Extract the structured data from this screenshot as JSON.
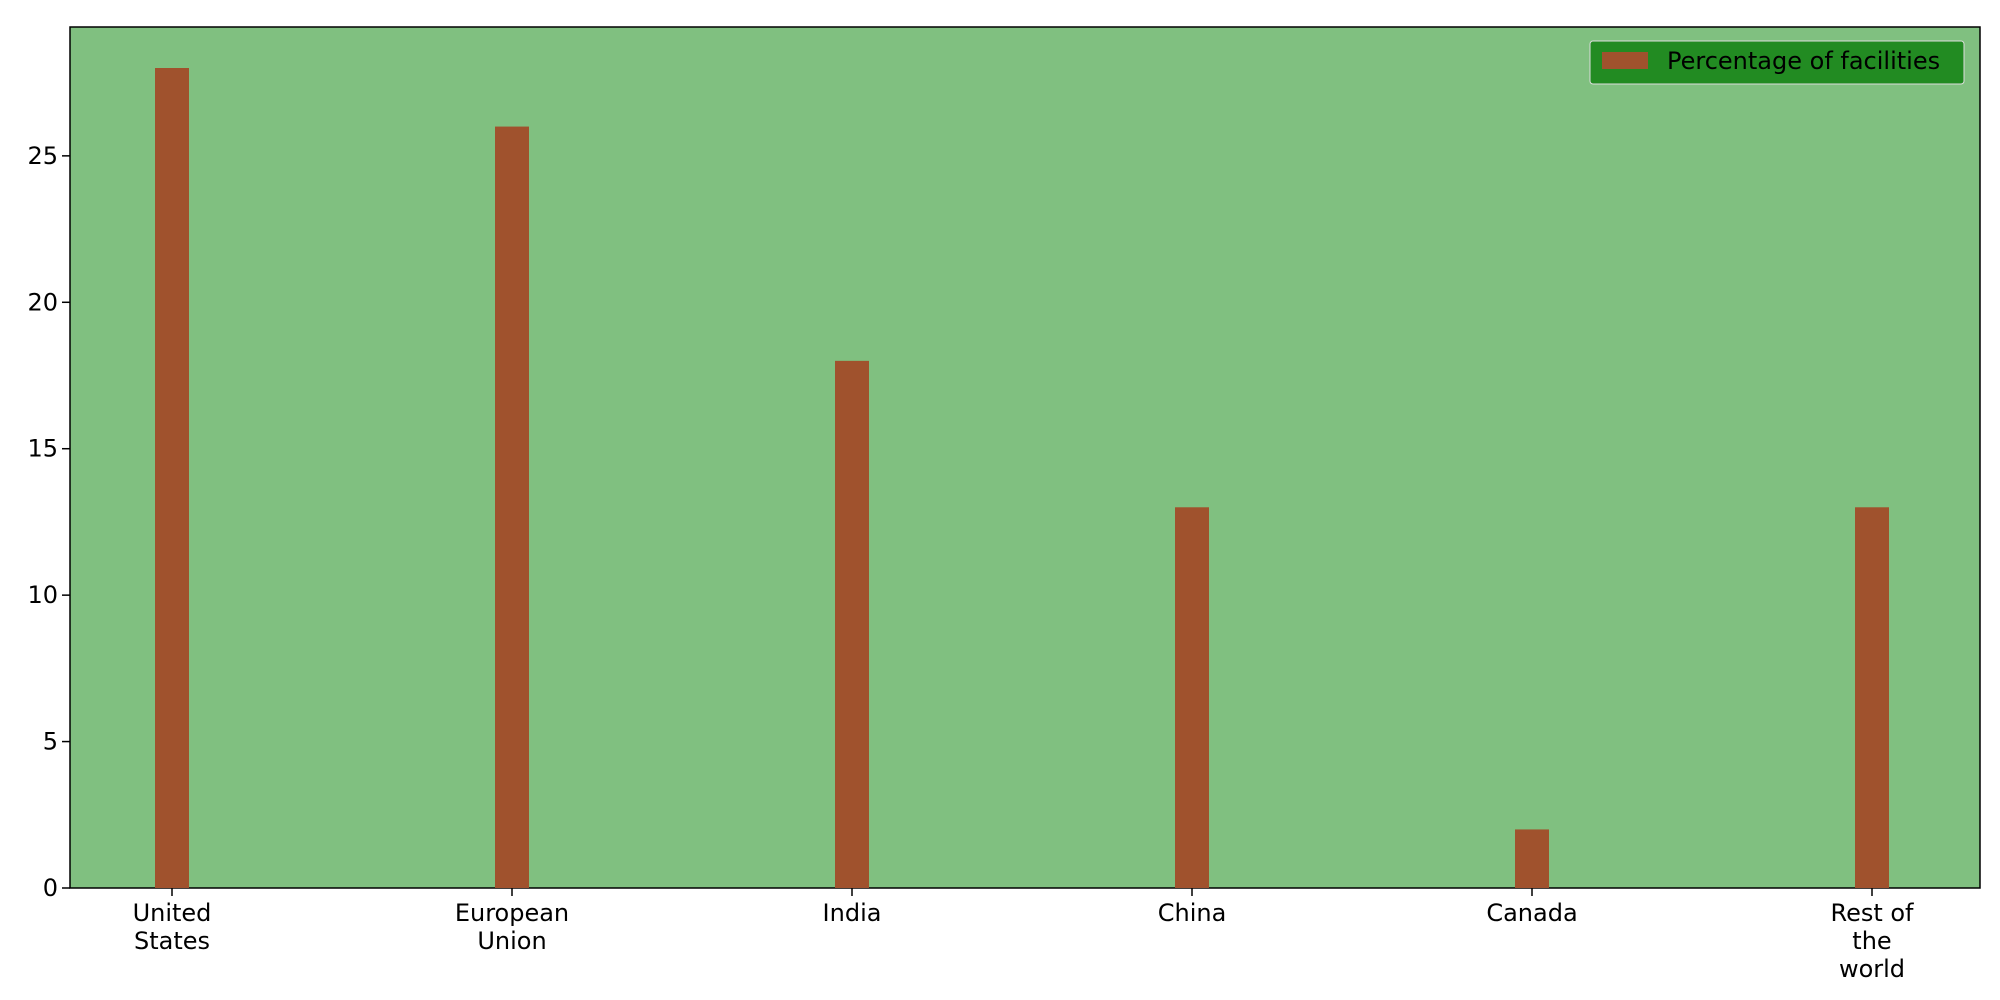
{
  "chart_data": {
    "type": "bar",
    "title": "",
    "xlabel": "",
    "ylabel": "",
    "categories": [
      [
        "United",
        "States"
      ],
      [
        "European",
        "Union"
      ],
      [
        "India"
      ],
      [
        "China"
      ],
      [
        "Canada"
      ],
      [
        "Rest of",
        "the",
        "world"
      ]
    ],
    "series": [
      {
        "name": "Percentage of facilities",
        "values": [
          28,
          26,
          18,
          13,
          2,
          13
        ],
        "color": "#a0522d"
      }
    ],
    "ylim": [
      0,
      29.4
    ],
    "yticks": [
      0,
      5,
      10,
      15,
      20,
      25
    ],
    "grid": false,
    "legend_position": "top-right",
    "colors": {
      "plot_background": "#80c080",
      "legend_background": "#228b22",
      "bar": "#a0522d",
      "axis": "#000000"
    }
  }
}
